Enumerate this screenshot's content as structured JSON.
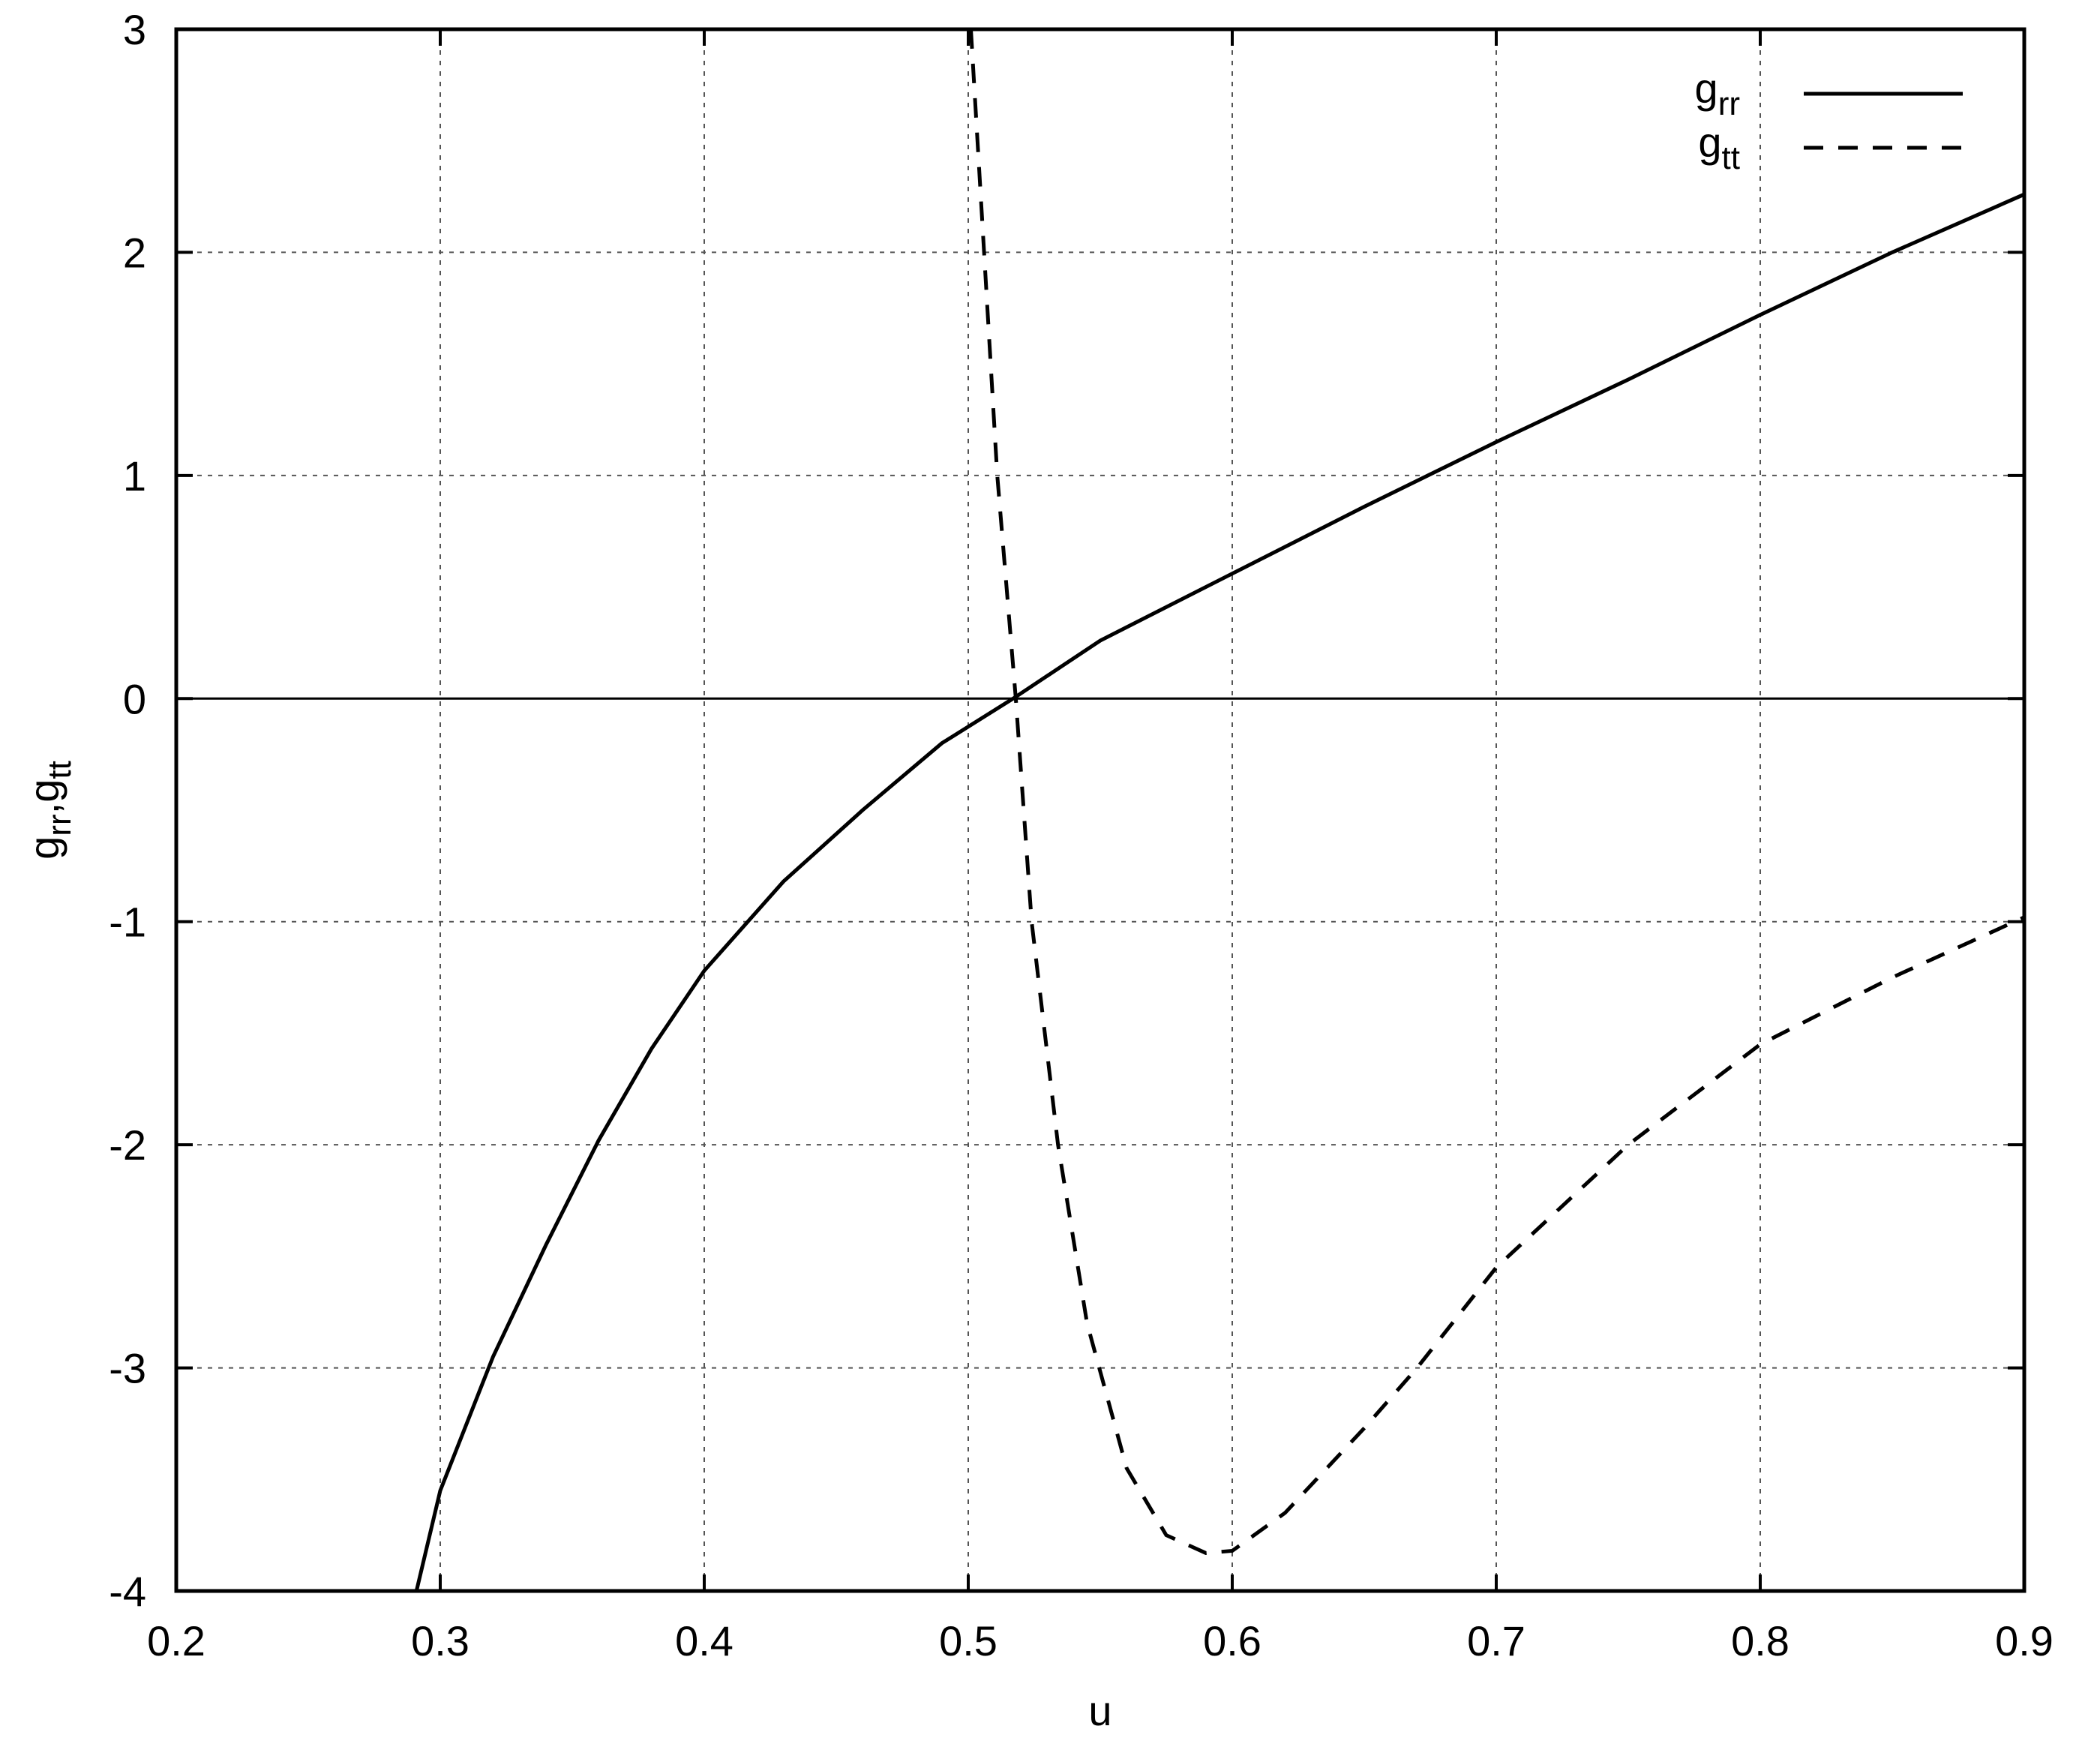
{
  "chart_data": {
    "type": "line",
    "xlabel": "u",
    "ylabel": [
      "g",
      "rr",
      ",g",
      "tt"
    ],
    "xlim": [
      0.2,
      0.9
    ],
    "xticks": [
      0.2,
      0.3,
      0.4,
      0.5,
      0.6,
      0.7,
      0.8,
      0.9
    ],
    "ylim": [
      -4,
      3
    ],
    "yticks": [
      -4,
      -3,
      -2,
      -1,
      0,
      1,
      2,
      3
    ],
    "grid": true,
    "zero_line": true,
    "legend": "top-right",
    "series": [
      {
        "name": [
          "g",
          "rr"
        ],
        "color": "#000000",
        "dash": false,
        "x": [
          0.291,
          0.3,
          0.32,
          0.34,
          0.36,
          0.38,
          0.4,
          0.43,
          0.46,
          0.49,
          0.517,
          0.55,
          0.6,
          0.65,
          0.7,
          0.75,
          0.8,
          0.85,
          0.9
        ],
        "values": [
          -4,
          -3.55,
          -2.95,
          -2.45,
          -1.98,
          -1.57,
          -1.22,
          -0.82,
          -0.5,
          -0.2,
          0,
          0.26,
          0.56,
          0.86,
          1.15,
          1.43,
          1.72,
          2.0,
          2.26
        ]
      },
      {
        "name": [
          "g",
          "tt"
        ],
        "color": "#000000",
        "dash": true,
        "x": [
          0.501,
          0.505,
          0.511,
          0.518,
          0.524,
          0.534,
          0.545,
          0.56,
          0.575,
          0.59,
          0.6,
          0.62,
          0.65,
          0.67,
          0.7,
          0.75,
          0.8,
          0.85,
          0.9
        ],
        "values": [
          3,
          2.2,
          1.0,
          0,
          -1,
          -2,
          -2.8,
          -3.45,
          -3.75,
          -3.83,
          -3.82,
          -3.65,
          -3.27,
          -3.0,
          -2.55,
          -2.0,
          -1.55,
          -1.25,
          -0.98
        ]
      }
    ]
  }
}
